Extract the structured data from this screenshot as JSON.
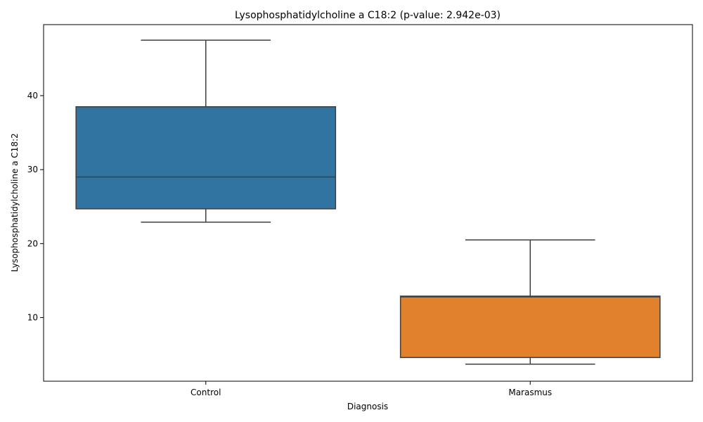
{
  "chart_data": {
    "type": "box",
    "title": "Lysophosphatidylcholine a C18:2 (p-value: 2.942e-03)",
    "xlabel": "Diagnosis",
    "ylabel": "Lysophosphatidylcholine a C18:2",
    "ylim": [
      1.4,
      49.6
    ],
    "yticks": [
      10,
      20,
      30,
      40
    ],
    "grid": false,
    "categories": [
      "Control",
      "Marasmus"
    ],
    "boxes": [
      {
        "category": "Control",
        "whisker_low": 22.9,
        "q1": 24.7,
        "median": 29.0,
        "q3": 38.5,
        "whisker_high": 47.5,
        "color": "#3274a1"
      },
      {
        "category": "Marasmus",
        "whisker_low": 3.7,
        "q1": 4.6,
        "median": 12.8,
        "q3": 12.9,
        "whisker_high": 20.5,
        "color": "#e1812c"
      }
    ],
    "line_color": "#3f3f3f"
  }
}
